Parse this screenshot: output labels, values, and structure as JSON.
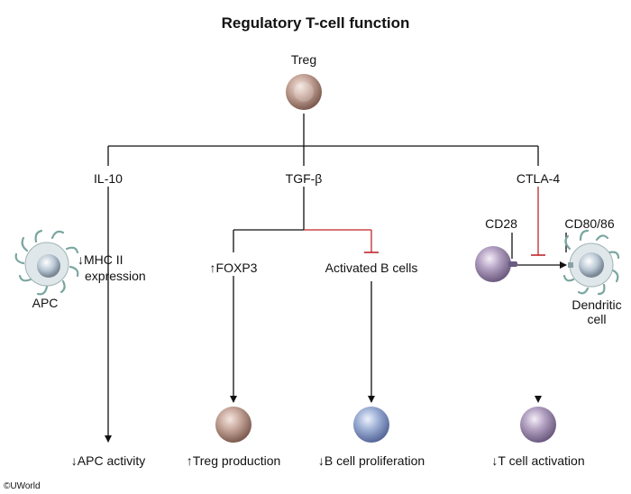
{
  "title": "Regulatory T-cell function",
  "root": "Treg",
  "branches": {
    "il10": "IL-10",
    "tgfb": "TGF-β",
    "ctla4": "CTLA-4"
  },
  "labels": {
    "apc": "APC",
    "mhc_line1": "↓MHC II",
    "mhc_line2": "expression",
    "foxp3": "↑FOXP3",
    "activated_b": "Activated B cells",
    "cd28": "CD28",
    "cd80_86": "CD80/86",
    "dendritic_line1": "Dendritic",
    "dendritic_line2": "cell"
  },
  "outcomes": {
    "apc_activity": "↓APC activity",
    "treg_production": "↑Treg production",
    "b_proliferation": "↓B cell proliferation",
    "t_activation": "↓T cell activation"
  },
  "copyright": "©UWorld",
  "colors": {
    "treg_cell": "#b8968a",
    "b_cell": "#8fa3c9",
    "t_cell": "#a692b5",
    "apc_cell": "#a9b7c4",
    "inhibition_line": "#c0262b"
  }
}
